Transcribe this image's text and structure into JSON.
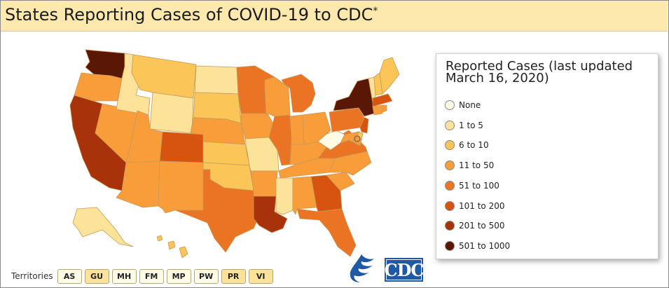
{
  "header": {
    "title": "States Reporting Cases of COVID-19 to CDC",
    "title_mark": "*"
  },
  "legend": {
    "title": "Reported Cases (last updated March 16, 2020)",
    "bins": [
      {
        "label": "None",
        "color": "#fffbe5"
      },
      {
        "label": "1 to 5",
        "color": "#fde39a"
      },
      {
        "label": "6 to 10",
        "color": "#fbc558"
      },
      {
        "label": "11 to 50",
        "color": "#f89d3a"
      },
      {
        "label": "51 to 100",
        "color": "#eb7424"
      },
      {
        "label": "101 to 200",
        "color": "#d65410"
      },
      {
        "label": "201 to 500",
        "color": "#a8330b"
      },
      {
        "label": "501 to 1000",
        "color": "#5a1705"
      }
    ]
  },
  "states": {
    "WA": 7,
    "OR": 3,
    "CA": 6,
    "NV": 3,
    "ID": 1,
    "MT": 2,
    "WY": 1,
    "UT": 3,
    "AZ": 3,
    "CO": 5,
    "NM": 3,
    "ND": 1,
    "SD": 2,
    "NE": 3,
    "KS": 2,
    "OK": 2,
    "TX": 4,
    "MN": 4,
    "IA": 3,
    "MO": 1,
    "AR": 3,
    "LA": 6,
    "WI": 3,
    "IL": 4,
    "MS": 1,
    "AL": 3,
    "TN": 3,
    "KY": 3,
    "IN": 3,
    "OH": 3,
    "MI": 4,
    "GA": 5,
    "FL": 4,
    "SC": 3,
    "NC": 3,
    "VA": 4,
    "WV": 0,
    "PA": 4,
    "NY": 7,
    "NJ": 5,
    "DE": 2,
    "MD": 3,
    "DC": 3,
    "VT": 1,
    "NH": 2,
    "ME": 2,
    "MA": 5,
    "CT": 3,
    "RI": 3,
    "AK": 1,
    "HI": 2
  },
  "territories": {
    "label": "Territories",
    "items": [
      {
        "code": "AS",
        "bin": 0
      },
      {
        "code": "GU",
        "bin": 1
      },
      {
        "code": "MH",
        "bin": 0
      },
      {
        "code": "FM",
        "bin": 0
      },
      {
        "code": "MP",
        "bin": 0
      },
      {
        "code": "PW",
        "bin": 0
      },
      {
        "code": "PR",
        "bin": 1
      },
      {
        "code": "VI",
        "bin": 1
      }
    ]
  },
  "logos": {
    "cdc": "CDC"
  }
}
